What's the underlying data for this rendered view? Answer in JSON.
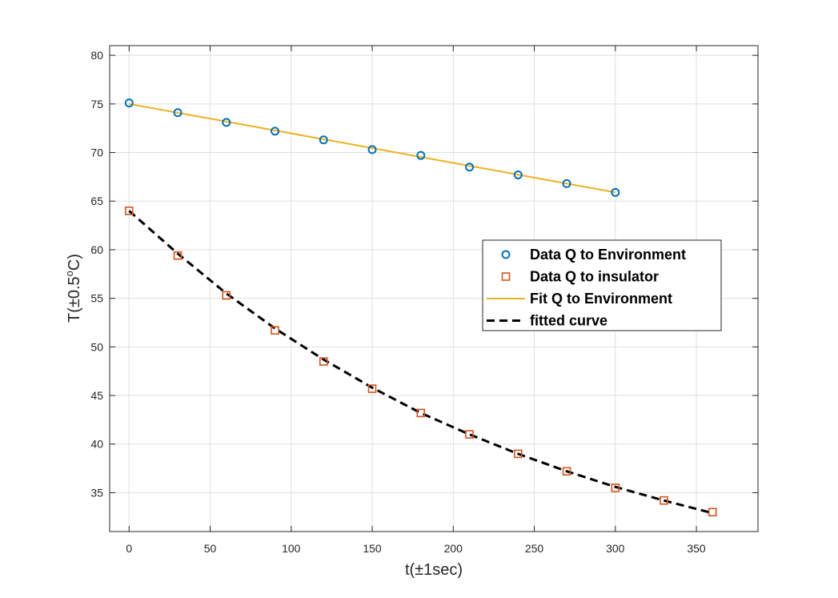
{
  "chart_data": {
    "type": "scatter",
    "title": "",
    "xlabel": "t(±1sec)",
    "ylabel_parts": [
      "T(±0.5",
      "o",
      "C)"
    ],
    "xlim": [
      -12,
      388
    ],
    "ylim": [
      31,
      81
    ],
    "xticks": [
      0,
      50,
      100,
      150,
      200,
      250,
      300,
      350
    ],
    "yticks": [
      35,
      40,
      45,
      50,
      55,
      60,
      65,
      70,
      75,
      80
    ],
    "grid": true,
    "legend_position": "right",
    "series": [
      {
        "name": "Data Q to Environment",
        "kind": "markers",
        "marker": "circle",
        "color": "#0072BD",
        "x": [
          0,
          30,
          60,
          90,
          120,
          150,
          180,
          210,
          240,
          270,
          300
        ],
        "y": [
          75.1,
          74.1,
          73.1,
          72.2,
          71.3,
          70.3,
          69.7,
          68.5,
          67.7,
          66.8,
          65.9
        ]
      },
      {
        "name": "Data Q to insulator",
        "kind": "markers",
        "marker": "square",
        "color": "#D95319",
        "x": [
          0,
          30,
          60,
          90,
          120,
          150,
          180,
          210,
          240,
          270,
          300,
          330,
          360
        ],
        "y": [
          64.0,
          59.4,
          55.3,
          51.7,
          48.5,
          45.7,
          43.2,
          41.0,
          39.0,
          37.2,
          35.5,
          34.2,
          33.0
        ]
      },
      {
        "name": "Fit Q to Environment",
        "kind": "line",
        "style": "solid",
        "color": "#EDB120",
        "x": [
          0,
          300
        ],
        "y": [
          75.0,
          65.9
        ]
      },
      {
        "name": "fitted curve",
        "kind": "line",
        "style": "dashed",
        "color": "#000000",
        "x": [
          0,
          30,
          60,
          90,
          120,
          150,
          180,
          210,
          240,
          270,
          300,
          330,
          360
        ],
        "y": [
          64.0,
          59.6,
          55.5,
          51.9,
          48.7,
          45.8,
          43.2,
          41.0,
          39.0,
          37.2,
          35.6,
          34.2,
          32.9
        ]
      }
    ]
  }
}
